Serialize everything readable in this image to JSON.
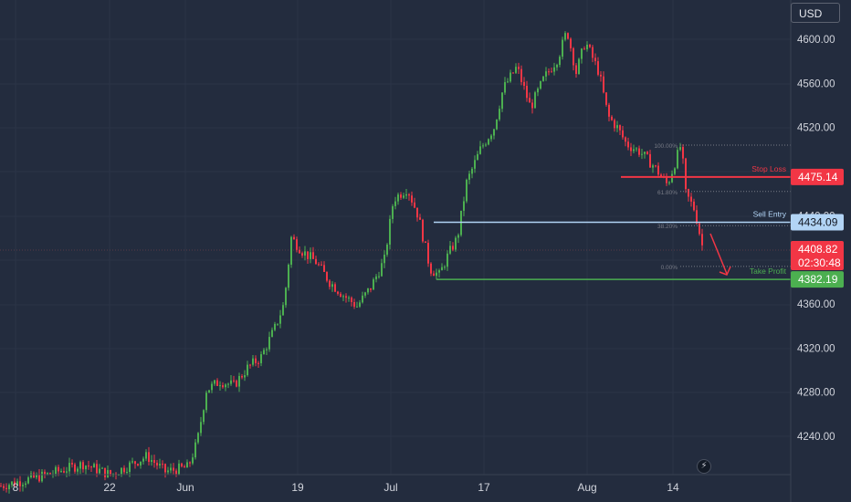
{
  "currency": "USD",
  "chart_data": {
    "type": "candlestick",
    "price_axis": {
      "ticks": [
        4600,
        4560,
        4520,
        4440,
        4360,
        4320,
        4280,
        4240
      ],
      "tick_labels": [
        "4600.00",
        "4560.00",
        "4520.00",
        "4440.00",
        "4360.00",
        "4320.00",
        "4280.00",
        "4240.00"
      ],
      "range": [
        4200,
        4620
      ]
    },
    "time_axis": {
      "labels": [
        "8",
        "22",
        "Jun",
        "19",
        "Jul",
        "17",
        "Aug",
        "14"
      ]
    },
    "current_price": {
      "label": "4408.82",
      "countdown": "02:30:48"
    },
    "trade_levels": [
      {
        "name": "Stop Loss",
        "price": 4475.14,
        "label": "4475.14",
        "color": "#f23645"
      },
      {
        "name": "Sell Entry",
        "price": 4434.09,
        "label": "4434.09",
        "color": "#b2d4f5"
      },
      {
        "name": "Take Profit",
        "price": 4382.19,
        "label": "4382.19",
        "color": "#4caf50"
      }
    ],
    "fib_levels": [
      {
        "label": "100.00%",
        "price": 4504
      },
      {
        "label": "61.80%",
        "price": 4462
      },
      {
        "label": "38.20%",
        "price": 4431
      },
      {
        "label": "0.00%",
        "price": 4394
      }
    ],
    "colors": {
      "up": "#4caf50",
      "down": "#f23645",
      "background": "#232c3e"
    },
    "price_path": [
      [
        0,
        4195
      ],
      [
        0.05,
        4205
      ],
      [
        0.09,
        4215
      ],
      [
        0.12,
        4205
      ],
      [
        0.16,
        4222
      ],
      [
        0.18,
        4208
      ],
      [
        0.205,
        4212
      ],
      [
        0.215,
        4235
      ],
      [
        0.225,
        4282
      ],
      [
        0.24,
        4290
      ],
      [
        0.255,
        4286
      ],
      [
        0.27,
        4302
      ],
      [
        0.285,
        4312
      ],
      [
        0.3,
        4338
      ],
      [
        0.31,
        4360
      ],
      [
        0.318,
        4420
      ],
      [
        0.33,
        4408
      ],
      [
        0.345,
        4398
      ],
      [
        0.36,
        4380
      ],
      [
        0.375,
        4368
      ],
      [
        0.39,
        4358
      ],
      [
        0.405,
        4375
      ],
      [
        0.42,
        4400
      ],
      [
        0.43,
        4455
      ],
      [
        0.445,
        4465
      ],
      [
        0.457,
        4440
      ],
      [
        0.47,
        4392
      ],
      [
        0.48,
        4386
      ],
      [
        0.49,
        4405
      ],
      [
        0.5,
        4420
      ],
      [
        0.51,
        4470
      ],
      [
        0.525,
        4500
      ],
      [
        0.54,
        4520
      ],
      [
        0.55,
        4555
      ],
      [
        0.565,
        4575
      ],
      [
        0.58,
        4538
      ],
      [
        0.595,
        4565
      ],
      [
        0.61,
        4583
      ],
      [
        0.62,
        4608
      ],
      [
        0.63,
        4570
      ],
      [
        0.64,
        4598
      ],
      [
        0.655,
        4570
      ],
      [
        0.665,
        4530
      ],
      [
        0.675,
        4520
      ],
      [
        0.685,
        4505
      ],
      [
        0.7,
        4498
      ],
      [
        0.715,
        4485
      ],
      [
        0.73,
        4468
      ],
      [
        0.745,
        4505
      ],
      [
        0.75,
        4460
      ],
      [
        0.76,
        4445
      ],
      [
        0.77,
        4405
      ]
    ]
  }
}
